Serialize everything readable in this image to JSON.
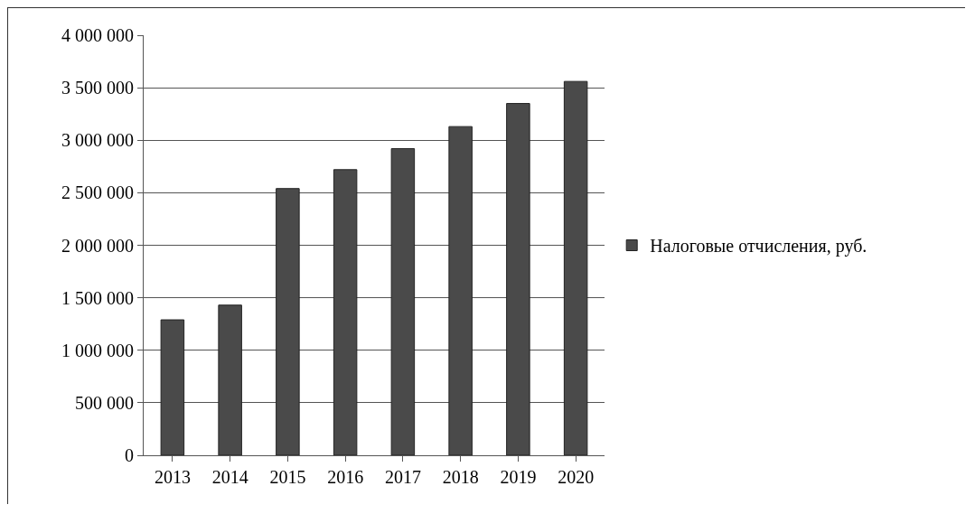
{
  "chart_data": {
    "type": "bar",
    "categories": [
      "2013",
      "2014",
      "2015",
      "2016",
      "2017",
      "2018",
      "2019",
      "2020"
    ],
    "series": [
      {
        "name": "Налоговые отчисления, руб.",
        "color": "#4a4a4a",
        "values": [
          1290000,
          1430000,
          2540000,
          2720000,
          2920000,
          3130000,
          3350000,
          3560000
        ]
      }
    ],
    "ylim": [
      0,
      4000000
    ],
    "yticks": [
      {
        "value": 0,
        "label": "0"
      },
      {
        "value": 500000,
        "label": "500 000"
      },
      {
        "value": 1000000,
        "label": "1 000 000"
      },
      {
        "value": 1500000,
        "label": "1 500 000"
      },
      {
        "value": 2000000,
        "label": "2 000 000"
      },
      {
        "value": 2500000,
        "label": "2 500 000"
      },
      {
        "value": 3000000,
        "label": "3 000 000"
      },
      {
        "value": 3500000,
        "label": "3 500 000"
      },
      {
        "value": 4000000,
        "label": "4 000 000"
      }
    ],
    "grid": "y",
    "legend": "right"
  }
}
